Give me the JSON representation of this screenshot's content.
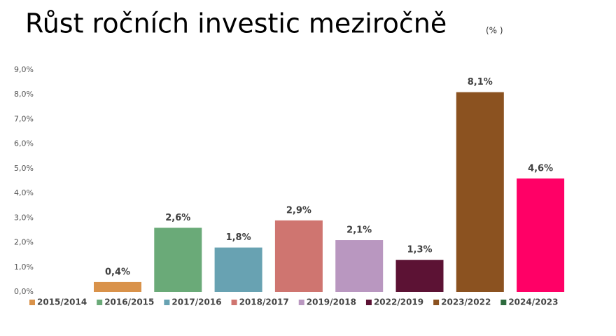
{
  "chart_data": {
    "type": "bar",
    "title": "Růst ročních investic meziročně",
    "subtitle": "(% )",
    "series": [
      {
        "name": "2015/2014",
        "color": "#d9924a",
        "values": [
          0.4
        ],
        "value_labels": [
          "0,4%"
        ]
      },
      {
        "name": "2016/2015",
        "color": "#6aaa78",
        "values": [
          2.6
        ],
        "value_labels": [
          "2,6%"
        ]
      },
      {
        "name": "2017/2016",
        "color": "#68a2b2",
        "values": [
          1.8
        ],
        "value_labels": [
          "1,8%"
        ]
      },
      {
        "name": "2018/2017",
        "color": "#cf7570",
        "values": [
          2.9
        ],
        "value_labels": [
          "2,9%"
        ]
      },
      {
        "name": "2019/2018",
        "color": "#b997c0",
        "values": [
          2.1
        ],
        "value_labels": [
          "2,1%"
        ]
      },
      {
        "name": "2022/2019",
        "color": "#5c1234",
        "values": [
          1.3
        ],
        "value_labels": [
          "1,3%"
        ]
      },
      {
        "name": "2023/2022",
        "color": "#8b5220",
        "values": [
          8.1
        ],
        "value_labels": [
          "8,1%"
        ]
      },
      {
        "name": "2024/2023",
        "color": "#2e6b3e",
        "bar_color": "#ff0066",
        "values": [
          4.6
        ],
        "value_labels": [
          "4,6%"
        ]
      }
    ],
    "ylim": [
      0,
      9
    ],
    "yticks": [
      {
        "value": 0,
        "label": "0,0%"
      },
      {
        "value": 1,
        "label": "1,0%"
      },
      {
        "value": 2,
        "label": "2,0%"
      },
      {
        "value": 3,
        "label": "3,0%"
      },
      {
        "value": 4,
        "label": "4,0%"
      },
      {
        "value": 5,
        "label": "5,0%"
      },
      {
        "value": 6,
        "label": "6,0%"
      },
      {
        "value": 7,
        "label": "7,0%"
      },
      {
        "value": 8,
        "label": "8,0%"
      },
      {
        "value": 9,
        "label": "9,0%"
      }
    ],
    "grid": false,
    "legend": "bottom"
  }
}
